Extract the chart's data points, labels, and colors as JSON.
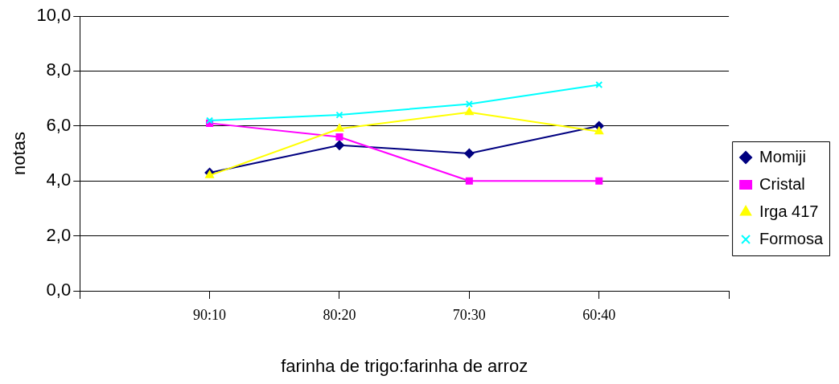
{
  "chart_data": {
    "type": "line",
    "xlabel": "farinha de trigo:farinha de arroz",
    "ylabel": "notas",
    "categories": [
      null,
      "90:10",
      "80:20",
      "70:30",
      "60:40",
      null
    ],
    "series": [
      {
        "name": "Momiji",
        "color": "#000080",
        "marker": "diamond",
        "values": [
          null,
          4.3,
          5.3,
          5.0,
          6.0,
          null
        ]
      },
      {
        "name": "Cristal",
        "color": "#ff00ff",
        "marker": "square",
        "values": [
          null,
          6.1,
          5.6,
          4.0,
          4.0,
          null
        ]
      },
      {
        "name": "Irga 417",
        "color": "#ffff00",
        "marker": "triangle",
        "values": [
          null,
          4.2,
          5.9,
          6.5,
          5.8,
          null
        ]
      },
      {
        "name": "Formosa",
        "color": "#00ffff",
        "marker": "cross",
        "values": [
          null,
          6.2,
          6.4,
          6.8,
          7.5,
          null
        ]
      }
    ],
    "ylim": [
      0,
      10
    ],
    "yticks": [
      {
        "value": 0,
        "label": "0,0"
      },
      {
        "value": 2,
        "label": "2,0"
      },
      {
        "value": 4,
        "label": "4,0"
      },
      {
        "value": 6,
        "label": "6,0"
      },
      {
        "value": 8,
        "label": "8,0"
      },
      {
        "value": 10,
        "label": "10,0"
      }
    ],
    "grid": "y",
    "legend": "right",
    "line_style": "solid"
  }
}
